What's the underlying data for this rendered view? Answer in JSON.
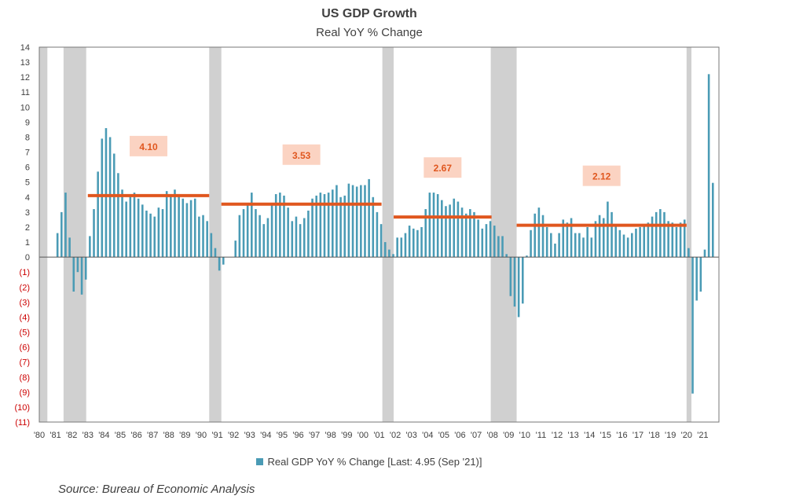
{
  "chart_data": {
    "type": "bar",
    "title": "US GDP Growth",
    "subtitle": "Real YoY % Change",
    "ylim": [
      -11,
      14
    ],
    "y_tick_labels": [
      "14",
      "13",
      "12",
      "11",
      "10",
      "9",
      "8",
      "7",
      "6",
      "5",
      "4",
      "3",
      "2",
      "1",
      "0",
      "(1)",
      "(2)",
      "(3)",
      "(4)",
      "(5)",
      "(6)",
      "(7)",
      "(8)",
      "(9)",
      "(10)",
      "(11)"
    ],
    "x_tick_labels": [
      "'80",
      "'81",
      "'82",
      "'83",
      "'84",
      "'85",
      "'86",
      "'87",
      "'88",
      "'89",
      "'90",
      "'91",
      "'92",
      "'93",
      "'94",
      "'95",
      "'96",
      "'97",
      "'98",
      "'99",
      "'00",
      "'01",
      "'02",
      "'03",
      "'04",
      "'05",
      "'06",
      "'07",
      "'08",
      "'09",
      "'10",
      "'11",
      "'12",
      "'13",
      "'14",
      "'15",
      "'16",
      "'17",
      "'18",
      "'19",
      "'20",
      "'21"
    ],
    "x_start_year": 1980,
    "series": [
      {
        "name": "Real GDP YoY % Change [Last: 4.95 (Sep '21)]",
        "color": "#4a9bb5",
        "frequency": "quarterly",
        "values": [
          0,
          0,
          0,
          0,
          1.6,
          3.0,
          4.3,
          1.3,
          -2.3,
          -1.0,
          -2.5,
          -1.5,
          1.4,
          3.2,
          5.7,
          7.9,
          8.6,
          8.0,
          6.9,
          5.6,
          4.5,
          3.7,
          4.2,
          4.3,
          3.9,
          3.5,
          3.1,
          2.9,
          2.7,
          3.3,
          3.2,
          4.4,
          4.1,
          4.5,
          4.2,
          3.9,
          3.6,
          3.8,
          3.9,
          2.7,
          2.8,
          2.4,
          1.6,
          0.6,
          -0.9,
          -0.5,
          0,
          0,
          1.1,
          2.8,
          3.2,
          3.6,
          4.3,
          3.2,
          2.8,
          2.2,
          2.6,
          3.6,
          4.2,
          4.3,
          4.1,
          3.3,
          2.4,
          2.7,
          2.2,
          2.6,
          3.1,
          3.9,
          4.1,
          4.3,
          4.2,
          4.3,
          4.5,
          4.8,
          4.0,
          4.1,
          4.9,
          4.8,
          4.7,
          4.8,
          4.8,
          5.2,
          4.0,
          3.0,
          2.2,
          1.0,
          0.5,
          0.2,
          1.3,
          1.3,
          1.6,
          2.1,
          1.9,
          1.8,
          2.0,
          3.2,
          4.3,
          4.3,
          4.2,
          3.8,
          3.4,
          3.5,
          3.9,
          3.7,
          3.3,
          2.9,
          3.2,
          3.0,
          2.5,
          1.9,
          2.2,
          2.4,
          2.1,
          1.4,
          1.4,
          0.2,
          -2.6,
          -3.3,
          -4.0,
          -3.1,
          0.1,
          1.8,
          2.9,
          3.3,
          2.8,
          2.0,
          1.6,
          0.9,
          1.6,
          2.5,
          2.3,
          2.6,
          1.6,
          1.6,
          1.3,
          2.0,
          1.3,
          2.4,
          2.8,
          2.6,
          3.7,
          3.0,
          2.2,
          1.8,
          1.5,
          1.3,
          1.6,
          1.9,
          2.0,
          2.1,
          2.3,
          2.7,
          3.0,
          3.2,
          3.0,
          2.4,
          2.3,
          2.0,
          2.3,
          2.5,
          0.6,
          -9.1,
          -2.9,
          -2.3,
          0.5,
          12.2,
          4.95
        ]
      }
    ],
    "recessions": [
      {
        "start": 1980.0,
        "end": 1980.5
      },
      {
        "start": 1981.5,
        "end": 1982.9
      },
      {
        "start": 1990.5,
        "end": 1991.25
      },
      {
        "start": 2001.2,
        "end": 2001.9
      },
      {
        "start": 2007.9,
        "end": 2009.5
      },
      {
        "start": 2020.0,
        "end": 2020.3
      }
    ],
    "period_averages": [
      {
        "label": "4.10",
        "value": 4.1,
        "start": 1983.0,
        "end": 1990.5
      },
      {
        "label": "3.53",
        "value": 3.53,
        "start": 1991.25,
        "end": 2001.15
      },
      {
        "label": "2.67",
        "value": 2.67,
        "start": 2001.9,
        "end": 2007.95
      },
      {
        "label": "2.12",
        "value": 2.12,
        "start": 2009.5,
        "end": 2020.0
      }
    ],
    "colors": {
      "bar": "#4a9bb5",
      "recession": "#d0d0d0",
      "average_line": "#e0571f",
      "average_label_bg": "#fbd3c2",
      "average_label_text": "#e0571f",
      "negative_tick": "#cc0000",
      "positive_tick": "#404040"
    },
    "legend": "bottom-center",
    "grid": false,
    "source": "Source:  Bureau of Economic Analysis"
  }
}
